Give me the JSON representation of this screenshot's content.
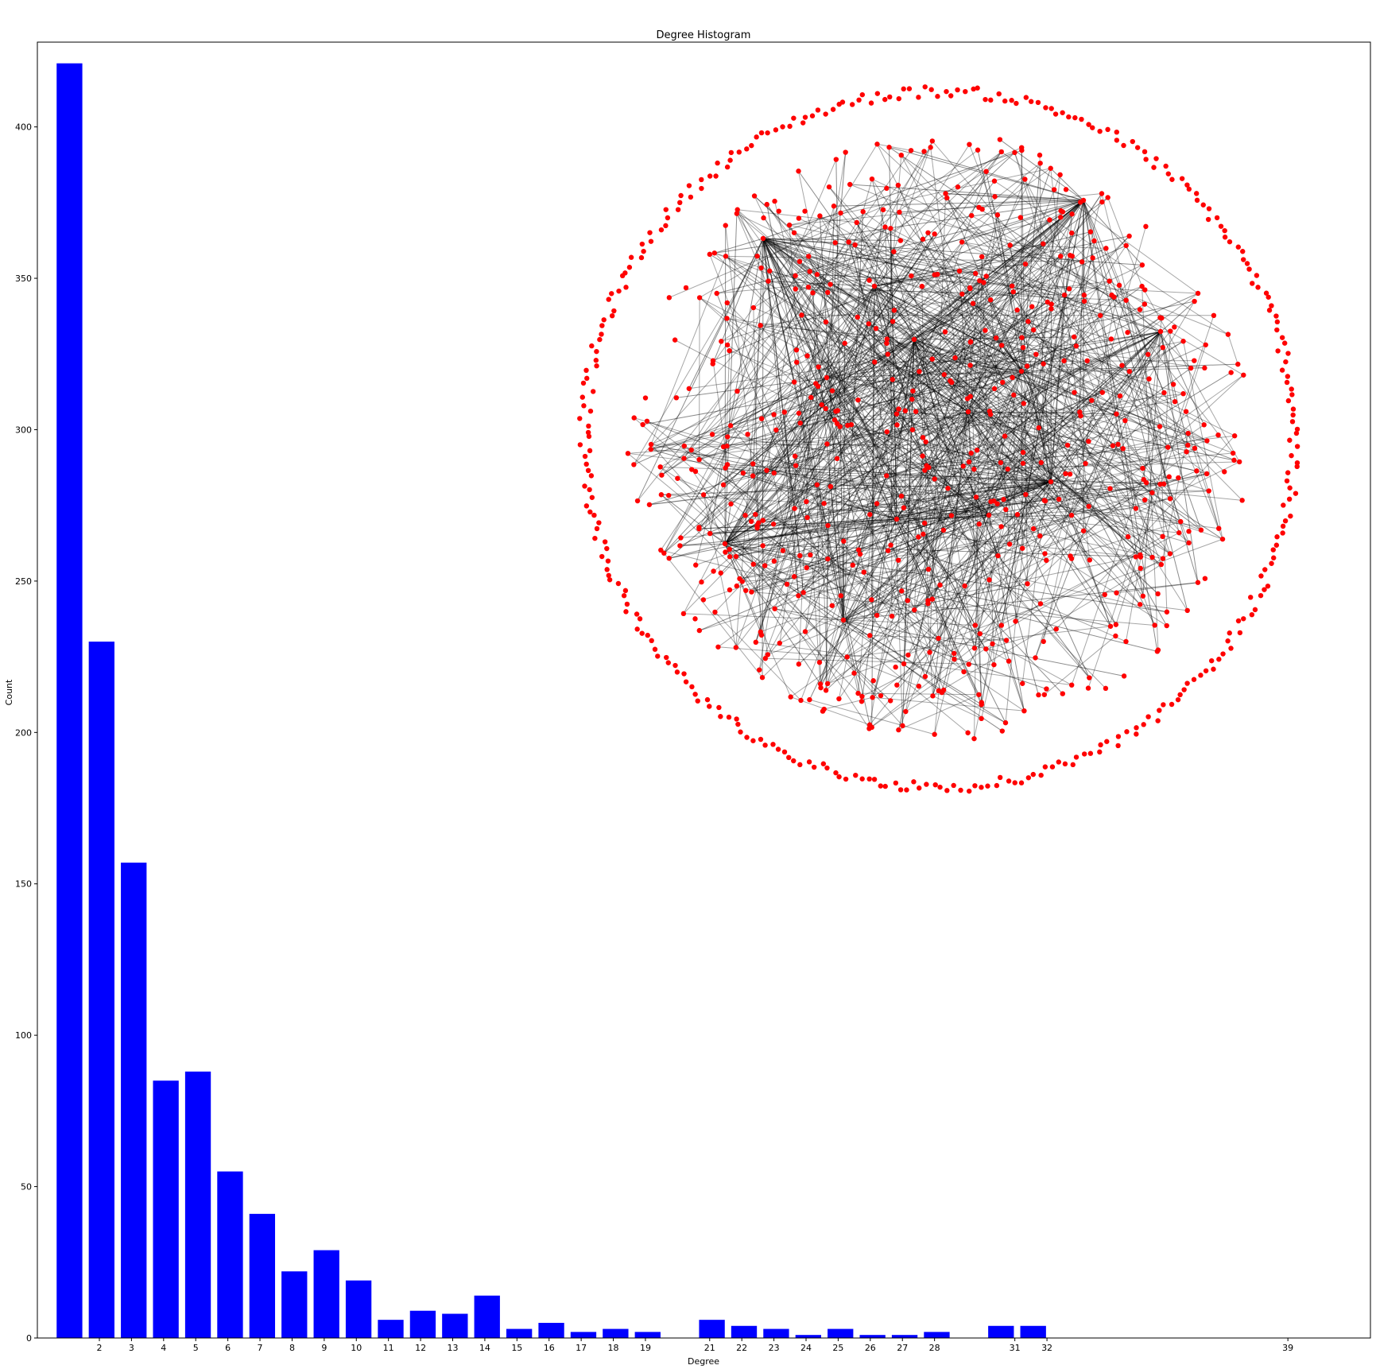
{
  "chart_data": {
    "type": "bar",
    "title": "Degree Histogram",
    "xlabel": "Degree",
    "ylabel": "Count",
    "ylim": [
      0,
      428
    ],
    "xlim": [
      0,
      41.5
    ],
    "bar_color": "#0000ff",
    "degrees": [
      1,
      2,
      3,
      4,
      5,
      6,
      7,
      8,
      9,
      10,
      11,
      12,
      13,
      14,
      15,
      16,
      17,
      18,
      19,
      21,
      22,
      23,
      24,
      25,
      26,
      27,
      28,
      30,
      31,
      39
    ],
    "values": [
      421,
      230,
      157,
      85,
      88,
      55,
      41,
      22,
      29,
      19,
      6,
      9,
      8,
      14,
      3,
      5,
      2,
      3,
      2,
      6,
      4,
      3,
      1,
      3,
      1,
      1,
      2,
      4,
      4,
      0
    ],
    "xtick_labels": [
      "2",
      "3",
      "4",
      "5",
      "6",
      "7",
      "8",
      "9",
      "10",
      "11",
      "12",
      "13",
      "14",
      "15",
      "16",
      "17",
      "18",
      "19",
      "21",
      "22",
      "23",
      "24",
      "25",
      "26",
      "27",
      "28",
      "31",
      "32",
      "39"
    ],
    "ytick_labels": [
      "0",
      "50",
      "100",
      "150",
      "200",
      "250",
      "300",
      "350",
      "400"
    ],
    "grid": false,
    "legend": "none"
  },
  "inset_graph": {
    "type": "network",
    "node_color": "#ff0000",
    "edge_color": "#000000",
    "layout": "spring (circular boundary ring of isolated/low-degree nodes)"
  }
}
